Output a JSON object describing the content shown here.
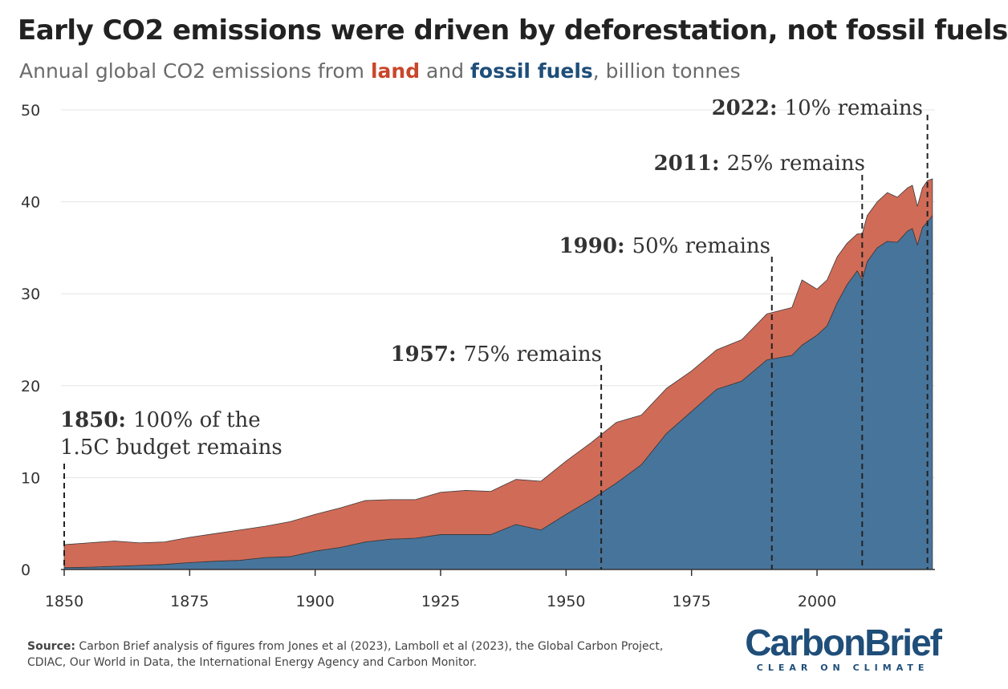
{
  "chart_data": {
    "type": "stacked_area",
    "title": "Early CO2 emissions were driven by deforestation, not fossil fuels",
    "subtitle_prefix": "Annual global CO2 emissions from",
    "subtitle_middle": "and",
    "subtitle_suffix": ", billion tonnes",
    "x": [
      1850,
      1855,
      1860,
      1865,
      1870,
      1875,
      1880,
      1885,
      1890,
      1895,
      1900,
      1905,
      1910,
      1915,
      1920,
      1925,
      1930,
      1935,
      1940,
      1945,
      1950,
      1955,
      1960,
      1965,
      1970,
      1975,
      1980,
      1985,
      1990,
      1995,
      1997,
      2000,
      2002,
      2004,
      2006,
      2008,
      2009,
      2010,
      2012,
      2014,
      2016,
      2018,
      2019,
      2020,
      2021,
      2022,
      2023
    ],
    "series": [
      {
        "name": "fossil fuels",
        "color": "#47749b",
        "values": [
          0.2,
          0.25,
          0.35,
          0.45,
          0.55,
          0.75,
          0.9,
          1.0,
          1.3,
          1.4,
          2.0,
          2.4,
          3.0,
          3.3,
          3.4,
          3.8,
          3.8,
          3.8,
          4.9,
          4.3,
          6.0,
          7.6,
          9.4,
          11.4,
          14.8,
          17.2,
          19.6,
          20.5,
          22.8,
          23.3,
          24.4,
          25.5,
          26.5,
          29.0,
          31.0,
          32.5,
          31.5,
          33.5,
          35.0,
          35.7,
          35.6,
          36.8,
          37.1,
          35.3,
          37.2,
          37.8,
          38.5
        ]
      },
      {
        "name": "land",
        "color": "#d06b57",
        "values": [
          2.5,
          2.65,
          2.75,
          2.45,
          2.45,
          2.75,
          3.0,
          3.3,
          3.4,
          3.8,
          4.0,
          4.3,
          4.5,
          4.3,
          4.2,
          4.6,
          4.8,
          4.7,
          4.9,
          5.3,
          5.8,
          6.2,
          6.6,
          5.4,
          4.9,
          4.4,
          4.3,
          4.5,
          5.0,
          5.2,
          7.1,
          5.0,
          5.0,
          5.0,
          4.5,
          4.0,
          5.0,
          5.0,
          5.0,
          5.3,
          4.9,
          4.7,
          4.7,
          4.2,
          4.3,
          4.5,
          4.0
        ]
      }
    ],
    "xlim": [
      1850,
      2023.5
    ],
    "xticks": [
      1850,
      1875,
      1900,
      1925,
      1950,
      1975,
      2000
    ],
    "ylim": [
      0,
      50
    ],
    "yticks": [
      0,
      10,
      20,
      30,
      40,
      50
    ],
    "grid": true,
    "annotations": [
      {
        "x": 1850,
        "year": "1850:",
        "lines": [
          "100% of the",
          "1.5C budget remains"
        ]
      },
      {
        "x": 1957,
        "year": "1957:",
        "lines": [
          "75% remains"
        ]
      },
      {
        "x": 1991,
        "year": "1990:",
        "lines": [
          "50% remains"
        ]
      },
      {
        "x": 2009,
        "year": "2011:",
        "lines": [
          "25% remains"
        ]
      },
      {
        "x": 2022,
        "year": "2022:",
        "lines": [
          "10% remains"
        ]
      }
    ]
  },
  "source": {
    "label": "Source:",
    "text": "Carbon Brief analysis of figures from Jones et al (2023), Lamboll et al (2023), the Global Carbon Project, CDIAC, Our World in Data, the International Energy Agency and Carbon Monitor."
  },
  "logo": {
    "name": "CarbonBrief",
    "tagline": "CLEAR ON CLIMATE"
  }
}
